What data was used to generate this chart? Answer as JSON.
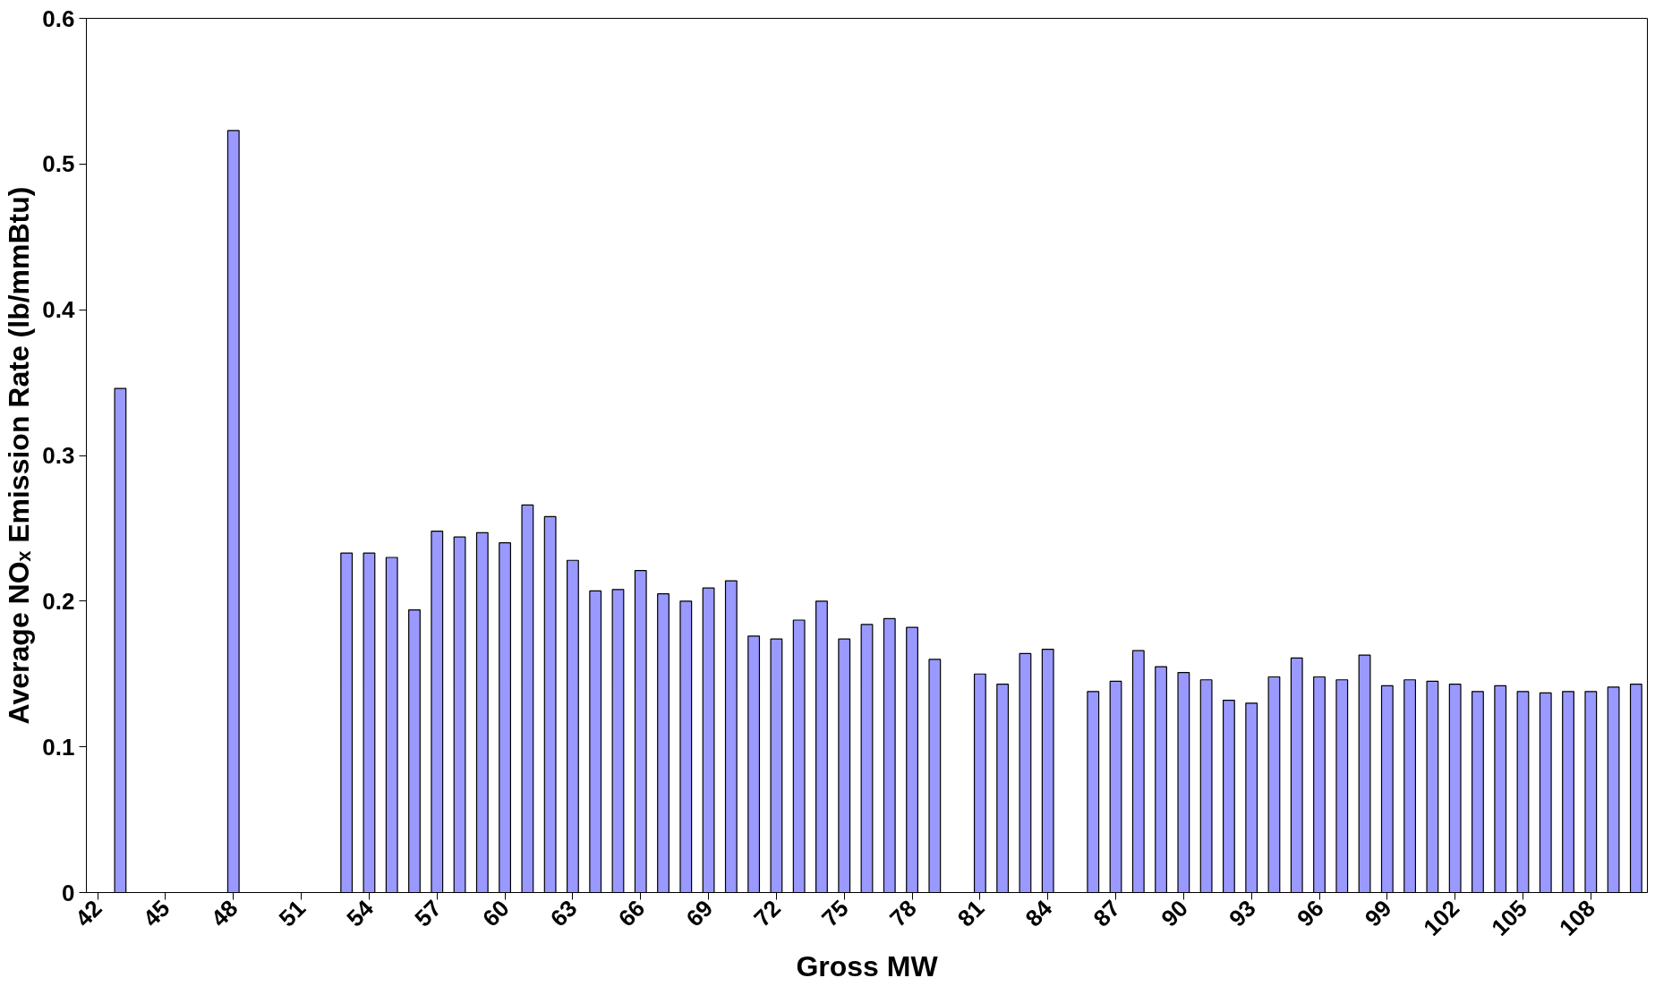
{
  "chart_data": {
    "type": "bar",
    "xlabel": "Gross MW",
    "ylabel": "Average NOₓ Emission Rate (lb/mmBtu)",
    "categories": [
      "42",
      null,
      null,
      "45",
      null,
      null,
      "48",
      null,
      null,
      "51",
      null,
      null,
      "54",
      null,
      null,
      "57",
      null,
      null,
      "60",
      null,
      null,
      "63",
      null,
      null,
      "66",
      null,
      null,
      "69",
      null,
      null,
      "72",
      null,
      null,
      "75",
      null,
      null,
      "78",
      null,
      null,
      "81",
      null,
      null,
      "84",
      null,
      null,
      "87",
      null,
      null,
      "90",
      null,
      null,
      "93",
      null,
      null,
      "96",
      null,
      null,
      "99",
      null,
      null,
      "102",
      null,
      null,
      "105",
      null,
      null,
      "108",
      null,
      null
    ],
    "series": [
      {
        "color": "#9999ff",
        "values": [
          null,
          0.346,
          null,
          null,
          null,
          null,
          0.523,
          null,
          null,
          null,
          null,
          0.233,
          0.233,
          0.23,
          0.194,
          0.248,
          0.244,
          0.247,
          0.24,
          0.266,
          0.258,
          0.228,
          0.207,
          0.208,
          0.221,
          0.205,
          0.2,
          0.209,
          0.214,
          0.176,
          0.174,
          0.187,
          0.2,
          0.174,
          0.184,
          0.188,
          0.182,
          0.16,
          null,
          0.15,
          0.143,
          0.164,
          0.167,
          null,
          0.138,
          0.145,
          0.166,
          0.155,
          0.151,
          0.146,
          0.132,
          0.13,
          0.148,
          0.161,
          0.148,
          0.146,
          0.163,
          0.142,
          0.146,
          0.145,
          0.143,
          0.138,
          0.142,
          0.138,
          0.137,
          0.138,
          0.138,
          0.141,
          0.143
        ]
      }
    ],
    "ylim": [
      0,
      0.6
    ],
    "yticks": [
      0,
      0.1,
      0.2,
      0.3,
      0.4,
      0.5,
      0.6
    ],
    "grid": false
  }
}
